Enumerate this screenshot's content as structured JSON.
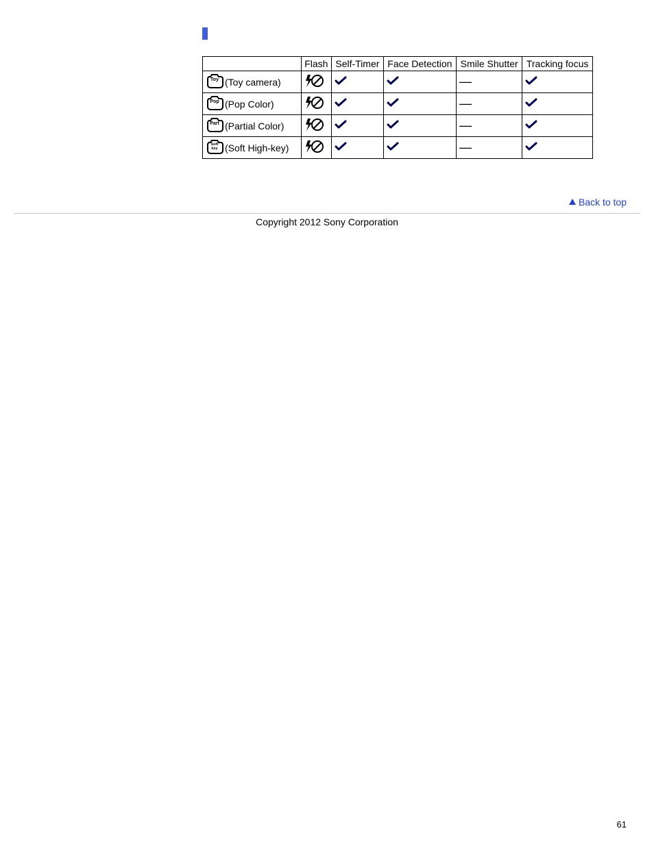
{
  "colors": {
    "heading_bar": "#4060e0",
    "link": "#2040dd",
    "border": "#000000",
    "divider": "#c8c8c8",
    "background": "#ffffff",
    "text": "#000000",
    "check": "#000055"
  },
  "table": {
    "columns": [
      "",
      "Flash",
      "Self-Timer",
      "Face Detection",
      "Smile Shutter",
      "Tracking focus"
    ],
    "rows": [
      {
        "icon_label": "Toy",
        "label": "(Toy camera)",
        "flash": "flash-off",
        "self_timer": "check",
        "face_detection": "check",
        "smile_shutter": "dash",
        "tracking_focus": "check"
      },
      {
        "icon_label": "Pop",
        "label": "(Pop Color)",
        "flash": "flash-off",
        "self_timer": "check",
        "face_detection": "check",
        "smile_shutter": "dash",
        "tracking_focus": "check"
      },
      {
        "icon_label": "Part",
        "label": "(Partial Color)",
        "flash": "flash-off",
        "self_timer": "check",
        "face_detection": "check",
        "smile_shutter": "dash",
        "tracking_focus": "check"
      },
      {
        "icon_label": "Soft key",
        "label": "(Soft High-key)",
        "flash": "flash-off",
        "self_timer": "check",
        "face_detection": "check",
        "smile_shutter": "dash",
        "tracking_focus": "check"
      }
    ]
  },
  "back_to_top": "Back to top",
  "copyright": "Copyright 2012 Sony Corporation",
  "page_number": "61",
  "dash_char": "—"
}
